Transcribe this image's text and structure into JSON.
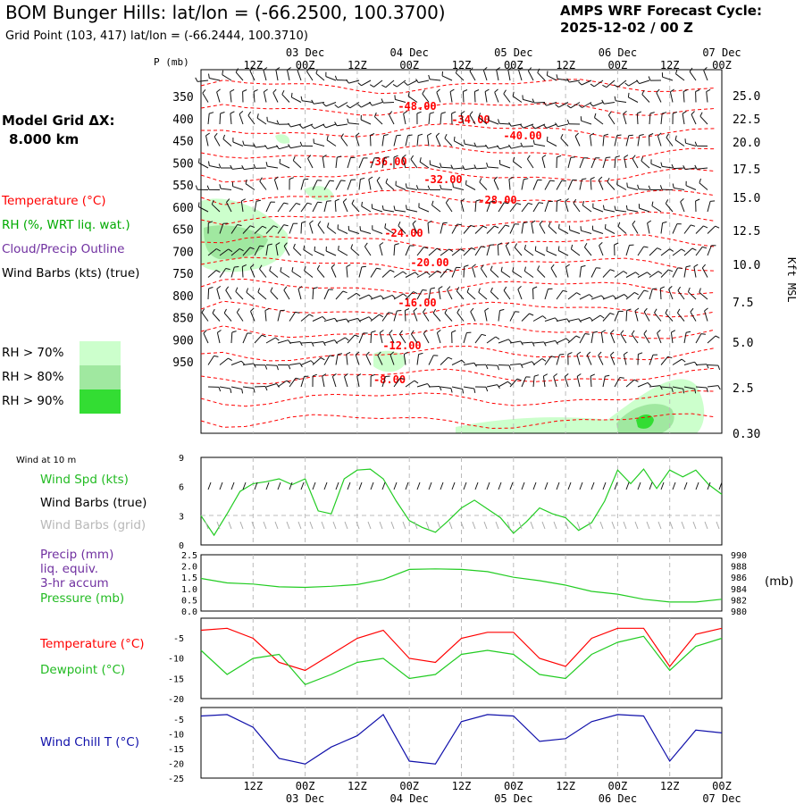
{
  "header": {
    "title": "BOM Bunger Hills:  lat/lon = (-66.2500, 100.3700)",
    "gridpoint": "Grid Point (103, 417) lat/lon = (-66.2444, 100.3710)",
    "cycle_label": "AMPS WRF Forecast Cycle:",
    "cycle_value": "2025-12-02 / 00  Z"
  },
  "sidebar": {
    "grid_dx_label": "Model Grid ΔX:",
    "grid_dx_value": "8.000 km",
    "legend": {
      "temperature": "Temperature (°C)",
      "rh": "RH (%, WRT liq. wat.)",
      "cloud": "Cloud/Precip Outline",
      "wind": "Wind Barbs (kts) (true)"
    },
    "rh_levels": [
      "RH > 70%",
      "RH > 80%",
      "RH > 90%"
    ],
    "wind10_title": "Wind at 10 m",
    "wind_spd_label": "Wind Spd (kts)",
    "wind_barbs_true": "Wind Barbs (true)",
    "wind_barbs_grid": "Wind Barbs (grid)",
    "precip_label_1": "Precip (mm)",
    "precip_label_2": "liq. equiv.",
    "precip_label_3": "3-hr accum",
    "pressure_label": "Pressure (mb)",
    "pressure_unit": "(mb)",
    "temp_label": "Temperature (°C)",
    "dew_label": "Dewpoint (°C)",
    "windchill_label": "Wind Chill T (°C)"
  },
  "colors": {
    "temperature": "#ff0000",
    "rh_label": "#00aa00",
    "cloud_label": "#7030a0",
    "rh70": "#ccffcc",
    "rh80": "#a0e8a0",
    "rh90": "#33dd33",
    "wind_speed": "#22cc22",
    "grid_barbs": "#aaaaaa",
    "windchill": "#1010aa"
  },
  "chart_data": [
    {
      "type": "time-height cross-section",
      "time_axis": {
        "top_labels": [
          "12Z",
          "00Z",
          "12Z",
          "00Z",
          "12Z",
          "00Z",
          "12Z",
          "00Z",
          "12Z",
          "00Z"
        ],
        "date_labels": [
          "03 Dec",
          "04 Dec",
          "05 Dec",
          "06 Dec",
          "07 Dec"
        ],
        "forecast_hours": [
          0,
          120
        ]
      },
      "pressure_label": "P (mb)",
      "pressure_levels": [
        350,
        400,
        450,
        500,
        550,
        600,
        650,
        700,
        750,
        800,
        850,
        900,
        950
      ],
      "height_label": "Kft MSL",
      "height_ticks": [
        "25.0",
        "22.5",
        "20.0",
        "17.5",
        "15.0",
        "12.5",
        "10.0",
        "7.5",
        "5.0",
        "2.5",
        "0.30"
      ],
      "temperature_contour_labels": [
        "-48.00",
        "-34.00",
        "-40.00",
        "-36.00",
        "-32.00",
        "-28.00",
        "-24.00",
        "-20.00",
        "-16.00",
        "-12.00",
        "-8.00"
      ]
    },
    {
      "type": "line",
      "title": "Wind Spd (kts)",
      "x_hours": [
        0,
        3,
        6,
        9,
        12,
        15,
        18,
        21,
        24,
        27,
        30,
        33,
        36,
        39,
        42,
        45,
        48,
        51,
        54,
        57,
        60,
        63,
        66,
        69,
        72,
        75,
        78,
        81,
        84,
        87,
        90,
        93,
        96,
        99,
        102,
        105,
        108,
        111,
        114,
        117,
        120
      ],
      "y_ticks": [
        "9",
        "6",
        "3",
        "0"
      ],
      "ylim": [
        0,
        9
      ],
      "values": [
        3.0,
        1.0,
        3.2,
        5.5,
        6.3,
        6.5,
        6.8,
        6.2,
        6.8,
        3.5,
        3.2,
        6.8,
        7.7,
        7.8,
        6.8,
        4.5,
        2.5,
        1.8,
        1.3,
        2.5,
        3.8,
        4.6,
        3.7,
        2.8,
        1.2,
        2.4,
        3.8,
        3.2,
        2.8,
        1.5,
        2.3,
        4.5,
        7.7,
        6.3,
        7.8,
        5.8,
        7.7,
        7.0,
        7.7,
        6.2,
        5.2
      ]
    },
    {
      "type": "line",
      "title": "Pressure (mb)",
      "x_hours": [
        0,
        6,
        12,
        18,
        24,
        30,
        36,
        42,
        48,
        54,
        60,
        66,
        72,
        78,
        84,
        90,
        96,
        102,
        108,
        114,
        120
      ],
      "y_ticks_precip": [
        "2.5",
        "2.0",
        "1.5",
        "1.0",
        "0.5",
        "0.0"
      ],
      "y_ticks_pressure": [
        "990",
        "988",
        "986",
        "984",
        "982",
        "980"
      ],
      "ylim": [
        980,
        990
      ],
      "values": [
        985.8,
        985.0,
        984.8,
        984.3,
        984.2,
        984.4,
        984.7,
        985.6,
        987.4,
        987.5,
        987.4,
        987.0,
        986.0,
        985.4,
        984.6,
        983.5,
        983.0,
        982.1,
        981.6,
        981.6,
        982.1
      ]
    },
    {
      "type": "line",
      "title": "Temperature / Dewpoint (°C)",
      "x_hours": [
        0,
        6,
        12,
        18,
        24,
        30,
        36,
        42,
        48,
        54,
        60,
        66,
        72,
        78,
        84,
        90,
        96,
        102,
        108,
        114,
        120
      ],
      "y_ticks": [
        "-5",
        "-10",
        "-15",
        "-20"
      ],
      "ylim": [
        -20,
        0
      ],
      "series": [
        {
          "name": "Temperature",
          "values": [
            -3,
            -2.5,
            -5,
            -11,
            -13,
            -9,
            -5,
            -3,
            -10,
            -11,
            -5,
            -3.5,
            -3.5,
            -10,
            -12,
            -5,
            -2.5,
            -2.5,
            -12,
            -4,
            -2.5
          ]
        },
        {
          "name": "Dewpoint",
          "values": [
            -8,
            -14,
            -10,
            -9,
            -16.5,
            -14,
            -11,
            -10,
            -15,
            -14,
            -9,
            -8,
            -9,
            -14,
            -15,
            -9,
            -6,
            -4.5,
            -13,
            -7,
            -5
          ]
        }
      ]
    },
    {
      "type": "line",
      "title": "Wind Chill T (°C)",
      "x_hours": [
        0,
        6,
        12,
        18,
        24,
        30,
        36,
        42,
        48,
        54,
        60,
        66,
        72,
        78,
        84,
        90,
        96,
        102,
        108,
        114,
        120
      ],
      "y_ticks": [
        "-5",
        "-10",
        "-15",
        "-20",
        "-25"
      ],
      "ylim": [
        -25,
        0
      ],
      "values": [
        -3,
        -2.5,
        -7,
        -18,
        -20,
        -14,
        -10,
        -2.5,
        -19,
        -20,
        -5,
        -2.5,
        -3,
        -12,
        -11,
        -5,
        -2.5,
        -3,
        -19,
        -8,
        -9
      ]
    }
  ]
}
